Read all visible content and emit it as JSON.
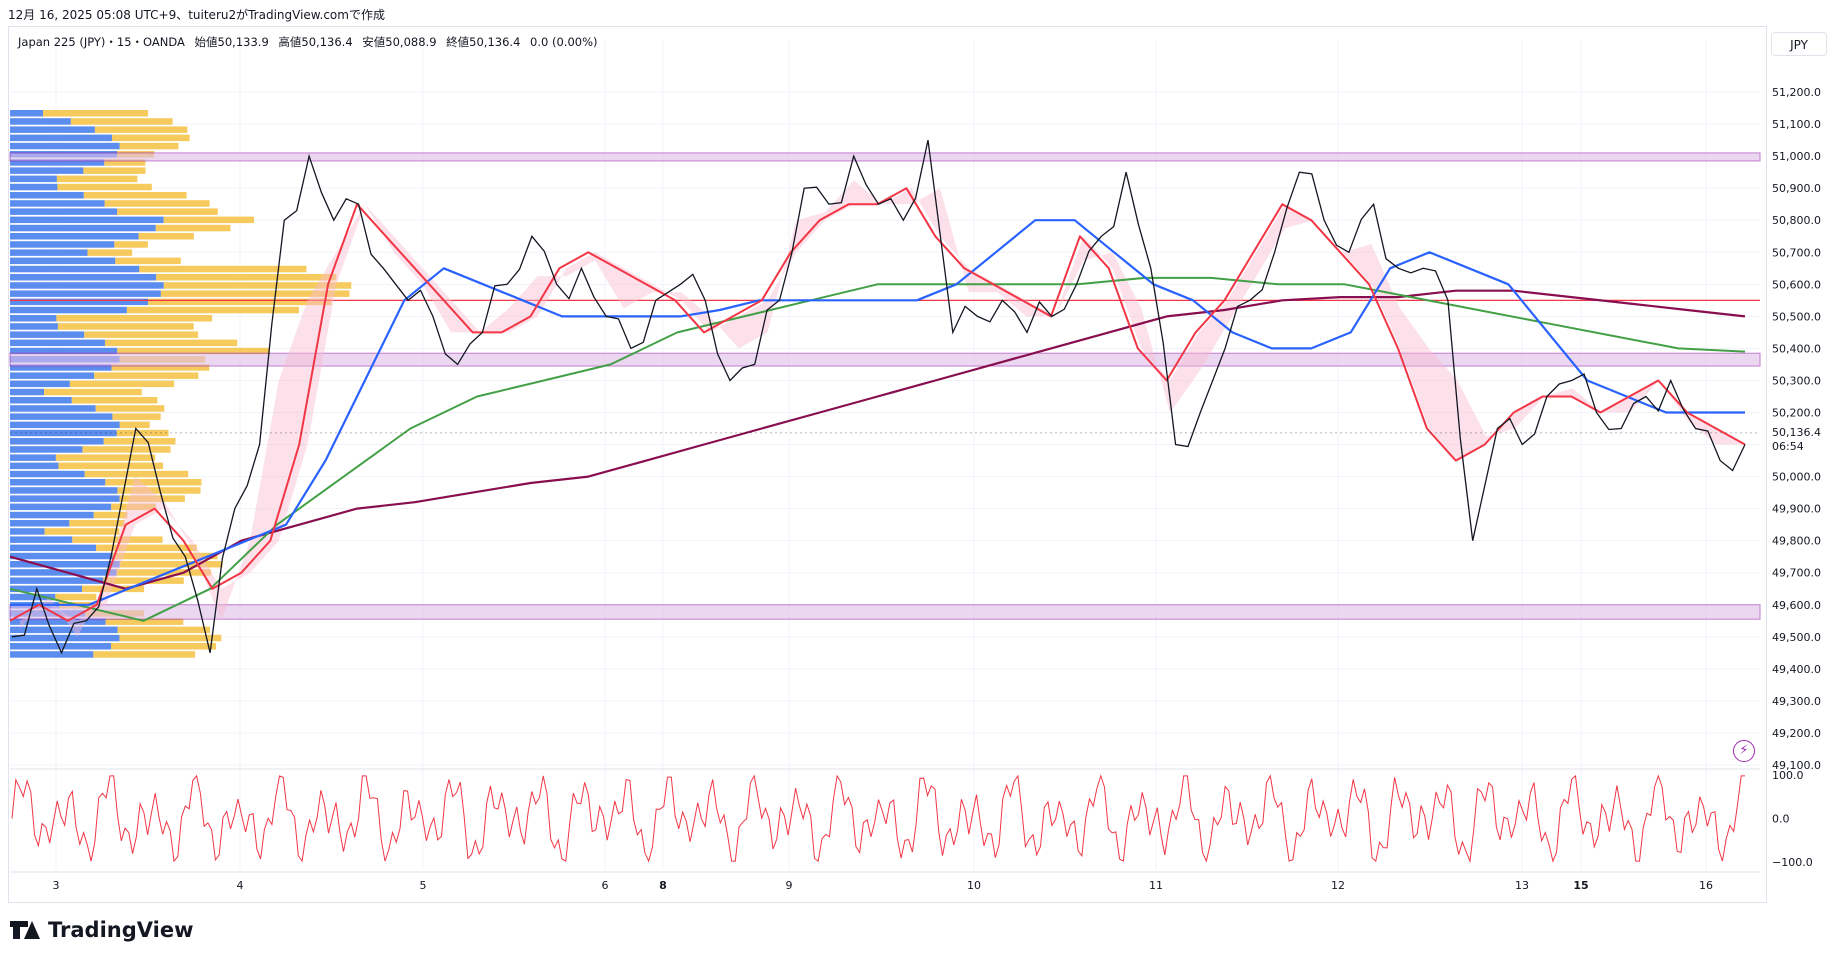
{
  "header": {
    "caption": "12月 16, 2025 05:08 UTC+9、tuiteru2がTradingView.comで作成"
  },
  "legend": {
    "symbol": "Japan 225 (JPY)・15・OANDA",
    "open_label": "始値",
    "open": "50,133.9",
    "high_label": "高値",
    "high": "50,136.4",
    "low_label": "安値",
    "low": "50,088.9",
    "close_label": "終値",
    "close": "50,136.4",
    "change": "0.0 (0.00%)"
  },
  "currency": "JPY",
  "price_axis": {
    "ticks": [
      "51,200.0",
      "51,100.0",
      "51,000.0",
      "50,900.0",
      "50,800.0",
      "50,700.0",
      "50,600.0",
      "50,500.0",
      "50,400.0",
      "50,300.0",
      "50,200.0",
      "50,000.0",
      "49,900.0",
      "49,800.0",
      "49,700.0",
      "49,600.0",
      "49,500.0",
      "49,400.0",
      "49,300.0",
      "49,200.0",
      "49,100.0"
    ],
    "last_price": "50,136.4",
    "countdown": "06:54"
  },
  "osc_axis": {
    "ticks": [
      "100.0",
      "0.0",
      "−100.0"
    ]
  },
  "time_axis": {
    "ticks": [
      "3",
      "4",
      "5",
      "6",
      "8",
      "9",
      "10",
      "11",
      "12",
      "13",
      "15",
      "16"
    ]
  },
  "brand": "TradingView",
  "colors": {
    "up": "#131722",
    "ema_fast": "#f23645",
    "ema_mid": "#2962ff",
    "sma_green": "#43a047",
    "sma_long": "#880e4f",
    "zone": "#9c27b0",
    "horizontal": "#f23645",
    "vp_up": "#5b8def",
    "vp_down": "#f5c141",
    "osc": "#f23645"
  },
  "chart_data": {
    "type": "line",
    "title": "Japan 225 (JPY)・15・OANDA",
    "ylim": [
      49100,
      51300
    ],
    "x_ticks": [
      "3",
      "4",
      "5",
      "6",
      "8",
      "9",
      "10",
      "11",
      "12",
      "13",
      "15",
      "16"
    ],
    "horizontal_lines": [
      50550
    ],
    "zones": [
      {
        "low": 50985,
        "high": 51010
      },
      {
        "low": 50345,
        "high": 50385
      },
      {
        "low": 49555,
        "high": 49600
      }
    ],
    "series": [
      {
        "values": [
          49500,
          49650,
          49450,
          49550,
          49750,
          50150,
          49950,
          49750,
          49450,
          49900,
          50100,
          50800,
          51000,
          50800,
          50850,
          50650,
          50550,
          50500,
          50350,
          50450,
          50600,
          50750,
          50600,
          50650,
          50500,
          50400,
          50550,
          50600,
          50550,
          50300,
          50350,
          50550,
          50900,
          50850,
          51000,
          50850,
          50800,
          51050,
          50450,
          50500,
          50550,
          50450,
          50500,
          50600,
          50750,
          50950,
          50650,
          50100,
          50200,
          50400,
          50550,
          50700,
          50950,
          50800,
          50700,
          50850,
          50650,
          50650,
          50550,
          49800,
          50150,
          50100,
          50250,
          50300,
          50200,
          50150,
          50250,
          50300,
          50150,
          50050,
          50100
        ]
      },
      {
        "values": [
          49550,
          49600,
          49550,
          49600,
          49850,
          49900,
          49800,
          49650,
          49700,
          49800,
          50100,
          50600,
          50850,
          50750,
          50650,
          50550,
          50450,
          50450,
          50500,
          50650,
          50700,
          50650,
          50600,
          50550,
          50450,
          50500,
          50550,
          50700,
          50800,
          50850,
          50850,
          50900,
          50750,
          50650,
          50600,
          50550,
          50500,
          50750,
          50650,
          50400,
          50300,
          50450,
          50550,
          50700,
          50850,
          50800,
          50700,
          50600,
          50400,
          50150,
          50050,
          50100,
          50200,
          50250,
          50250,
          50200,
          50250,
          50300,
          50200,
          50150,
          50100
        ]
      },
      {
        "values": [
          49600,
          49600,
          49600,
          49650,
          49700,
          49750,
          49800,
          49850,
          50050,
          50300,
          50550,
          50650,
          50600,
          50550,
          50500,
          50500,
          50500,
          50500,
          50520,
          50550,
          50550,
          50550,
          50550,
          50550,
          50600,
          50700,
          50800,
          50800,
          50700,
          50600,
          50550,
          50450,
          50400,
          50400,
          50450,
          50650,
          50700,
          50650,
          50600,
          50450,
          50300,
          50250,
          50200,
          50200,
          50200
        ]
      },
      {
        "values": [
          49650,
          49600,
          49550,
          49650,
          49850,
          50000,
          50150,
          50250,
          50300,
          50350,
          50450,
          50500,
          50550,
          50600,
          50600,
          50600,
          50600,
          50620,
          50620,
          50600,
          50600,
          50560,
          50520,
          50480,
          50440,
          50400,
          50390
        ]
      },
      {
        "values": [
          49750,
          49700,
          49650,
          49700,
          49800,
          49850,
          49900,
          49920,
          49950,
          49980,
          50000,
          50050,
          50100,
          50150,
          50200,
          50250,
          50300,
          50350,
          50400,
          50450,
          50500,
          50520,
          50550,
          50560,
          50560,
          50580,
          50580,
          50560,
          50540,
          50520,
          50500
        ]
      }
    ],
    "oscillator": {
      "ylim": [
        -100,
        100
      ],
      "ticks": [
        100,
        0,
        -100
      ]
    }
  }
}
